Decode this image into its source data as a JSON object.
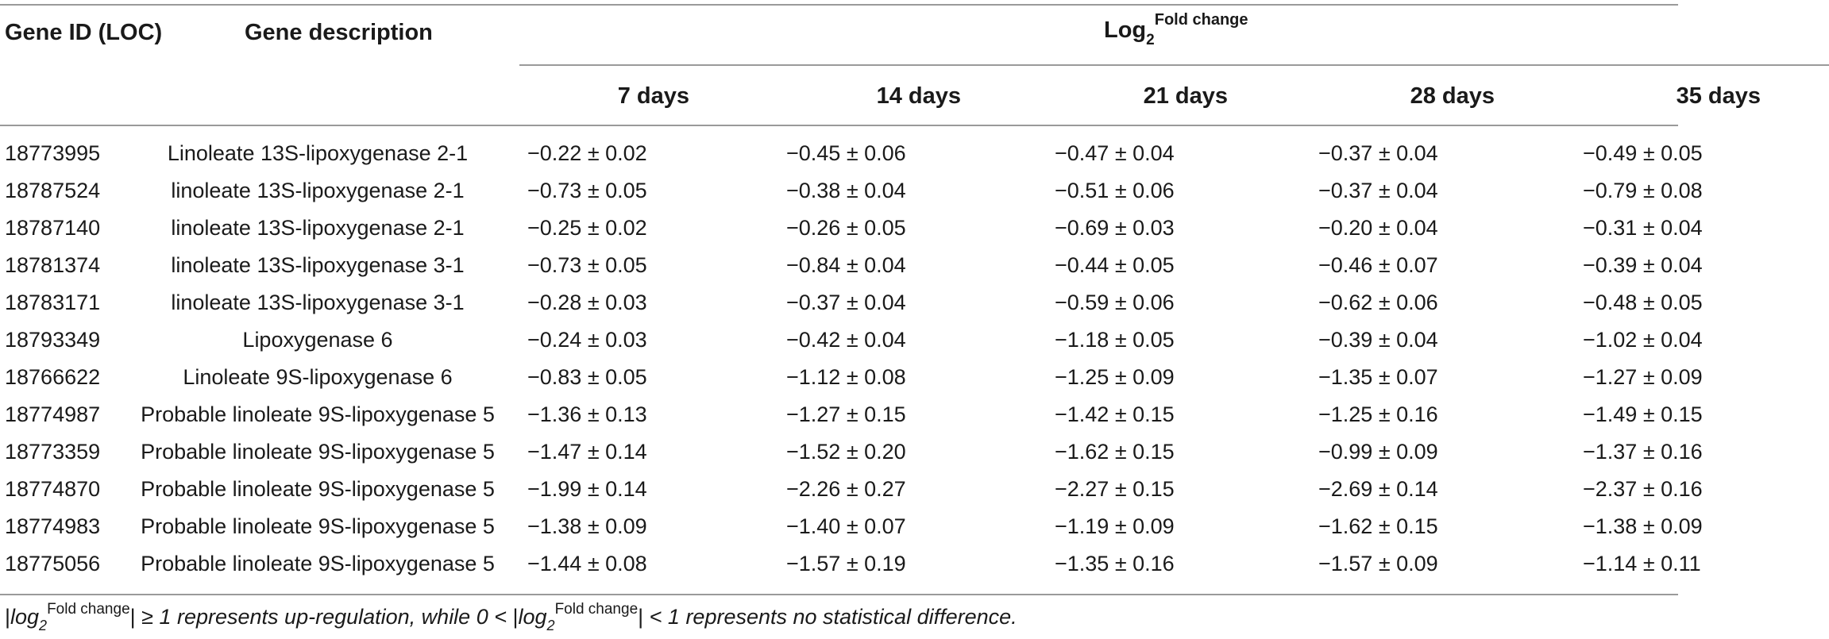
{
  "table": {
    "headers": {
      "gene_id": "Gene ID (LOC)",
      "gene_description": "Gene description",
      "log_title": {
        "base": "Log",
        "sub": "2",
        "sup": "Fold change"
      },
      "days": [
        "7 days",
        "14 days",
        "21 days",
        "28 days",
        "35 days"
      ]
    },
    "rows": [
      {
        "id": "18773995",
        "desc": "Linoleate 13S-lipoxygenase 2-1",
        "values": [
          "−0.22 ± 0.02",
          "−0.45 ± 0.06",
          "−0.47 ± 0.04",
          "−0.37 ± 0.04",
          "−0.49 ± 0.05"
        ]
      },
      {
        "id": "18787524",
        "desc": "linoleate 13S-lipoxygenase 2-1",
        "values": [
          "−0.73 ± 0.05",
          "−0.38 ± 0.04",
          "−0.51 ± 0.06",
          "−0.37 ± 0.04",
          "−0.79 ± 0.08"
        ]
      },
      {
        "id": "18787140",
        "desc": "linoleate 13S-lipoxygenase 2-1",
        "values": [
          "−0.25 ± 0.02",
          "−0.26 ± 0.05",
          "−0.69 ± 0.03",
          "−0.20 ± 0.04",
          "−0.31 ± 0.04"
        ]
      },
      {
        "id": "18781374",
        "desc": "linoleate 13S-lipoxygenase 3-1",
        "values": [
          "−0.73 ± 0.05",
          "−0.84 ± 0.04",
          "−0.44 ± 0.05",
          "−0.46 ± 0.07",
          "−0.39 ± 0.04"
        ]
      },
      {
        "id": "18783171",
        "desc": "linoleate 13S-lipoxygenase 3-1",
        "values": [
          "−0.28 ± 0.03",
          "−0.37 ± 0.04",
          "−0.59 ± 0.06",
          "−0.62 ± 0.06",
          "−0.48 ± 0.05"
        ]
      },
      {
        "id": "18793349",
        "desc": "Lipoxygenase 6",
        "values": [
          "−0.24 ± 0.03",
          "−0.42 ± 0.04",
          "−1.18 ± 0.05",
          "−0.39 ± 0.04",
          "−1.02 ± 0.04"
        ]
      },
      {
        "id": "18766622",
        "desc": "Linoleate 9S-lipoxygenase 6",
        "values": [
          "−0.83 ± 0.05",
          "−1.12 ± 0.08",
          "−1.25 ± 0.09",
          "−1.35 ± 0.07",
          "−1.27 ± 0.09"
        ]
      },
      {
        "id": "18774987",
        "desc": "Probable linoleate 9S-lipoxygenase 5",
        "values": [
          "−1.36 ± 0.13",
          "−1.27 ± 0.15",
          "−1.42 ± 0.15",
          "−1.25 ± 0.16",
          "−1.49 ± 0.15"
        ]
      },
      {
        "id": "18773359",
        "desc": "Probable linoleate 9S-lipoxygenase 5",
        "values": [
          "−1.47 ± 0.14",
          "−1.52 ± 0.20",
          "−1.62 ± 0.15",
          "−0.99 ± 0.09",
          "−1.37 ± 0.16"
        ]
      },
      {
        "id": "18774870",
        "desc": "Probable linoleate 9S-lipoxygenase 5",
        "values": [
          "−1.99 ± 0.14",
          "−2.26 ± 0.27",
          "−2.27 ± 0.15",
          "−2.69 ± 0.14",
          "−2.37 ± 0.16"
        ]
      },
      {
        "id": "18774983",
        "desc": "Probable linoleate 9S-lipoxygenase 5",
        "values": [
          "−1.38 ± 0.09",
          "−1.40 ± 0.07",
          "−1.19 ± 0.09",
          "−1.62 ± 0.15",
          "−1.38 ± 0.09"
        ]
      },
      {
        "id": "18775056",
        "desc": "Probable linoleate 9S-lipoxygenase 5",
        "values": [
          "−1.44 ± 0.08",
          "−1.57 ± 0.19",
          "−1.35 ± 0.16",
          "−1.57 ± 0.09",
          "−1.14 ± 0.11"
        ]
      }
    ],
    "footnote": {
      "bar_open": "|",
      "log": "log",
      "sub": "2",
      "sup": "Fold change",
      "bar_close": "|",
      "part1": " ≥ 1 represents up-regulation, while 0 < ",
      "part2": " < 1 represents no statistical difference."
    }
  },
  "colors": {
    "text": "#1a1a1a",
    "rule": "#9a9a9a",
    "background": "#ffffff"
  }
}
